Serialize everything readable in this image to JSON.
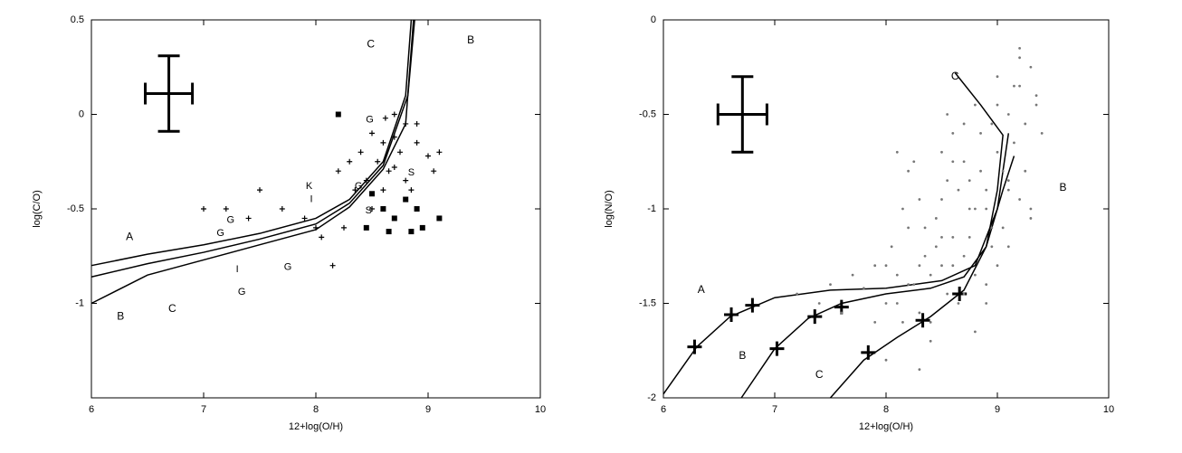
{
  "chart_data": [
    {
      "type": "line",
      "xlabel": "12+log(O/H)",
      "ylabel": "log(C/O)",
      "xlim": [
        6,
        10
      ],
      "ylim": [
        -1.5,
        0.5
      ],
      "xticks": [
        6,
        7,
        8,
        9,
        10
      ],
      "yticks": [
        -1,
        -0.5,
        0,
        0.5
      ],
      "error_bar": {
        "x": 6.69,
        "y": 0.11,
        "xerr": 0.21,
        "yerr": 0.2
      },
      "series": [
        {
          "type": "line",
          "color": "#000000",
          "x": [
            6,
            6.5,
            7,
            7.5,
            8,
            8.3,
            8.6,
            8.8,
            8.85
          ],
          "values": [
            -0.8,
            -0.74,
            -0.69,
            -0.63,
            -0.55,
            -0.45,
            -0.25,
            0.1,
            0.5
          ]
        },
        {
          "type": "line",
          "color": "#000000",
          "x": [
            6,
            6.5,
            7,
            7.5,
            8,
            8.3,
            8.6,
            8.82,
            8.88
          ],
          "values": [
            -0.86,
            -0.79,
            -0.73,
            -0.66,
            -0.58,
            -0.47,
            -0.27,
            0.1,
            0.5
          ]
        },
        {
          "type": "line",
          "color": "#000000",
          "x": [
            6,
            6.5,
            7,
            7.5,
            8,
            8.3,
            8.6,
            8.8,
            8.87
          ],
          "values": [
            -1.0,
            -0.85,
            -0.77,
            -0.69,
            -0.61,
            -0.49,
            -0.29,
            -0.05,
            0.5
          ]
        },
        {
          "type": "scatter",
          "marker": "plus",
          "color": "#000000",
          "x": [
            8.5,
            8.6,
            8.7,
            8.75,
            8.8,
            8.9,
            9.0,
            9.1,
            8.55,
            8.65,
            8.45,
            8.35,
            8.6,
            8.7,
            8.8,
            9.05,
            8.4,
            8.3,
            8.2,
            8.5,
            8.25,
            8.15,
            8.0,
            7.9,
            7.7,
            7.5,
            7.4,
            7.0,
            7.2,
            8.05,
            8.9,
            8.85,
            8.62,
            8.7
          ],
          "values": [
            -0.1,
            -0.15,
            -0.12,
            -0.2,
            -0.05,
            -0.15,
            -0.22,
            -0.2,
            -0.25,
            -0.3,
            -0.35,
            -0.4,
            -0.4,
            -0.28,
            -0.35,
            -0.3,
            -0.2,
            -0.25,
            -0.3,
            -0.5,
            -0.6,
            -0.8,
            -0.6,
            -0.55,
            -0.5,
            -0.4,
            -0.55,
            -0.5,
            -0.5,
            -0.65,
            -0.05,
            -0.4,
            -0.02,
            0.0
          ]
        },
        {
          "type": "scatter",
          "marker": "square",
          "color": "#000000",
          "x": [
            8.2,
            8.8,
            8.9,
            8.95,
            8.6,
            9.1,
            8.7,
            8.85,
            8.5,
            8.45,
            8.65
          ],
          "values": [
            0.0,
            -0.45,
            -0.5,
            -0.6,
            -0.5,
            -0.55,
            -0.55,
            -0.62,
            -0.42,
            -0.6,
            -0.62
          ]
        }
      ],
      "labeled_points": {
        "labels": [
          "G",
          "G",
          "G",
          "K",
          "I",
          "G",
          "G",
          "I",
          "S",
          "G",
          "S"
        ],
        "x": [
          8.48,
          7.24,
          7.15,
          7.94,
          7.96,
          7.34,
          7.75,
          7.3,
          8.85,
          8.38,
          8.47
        ],
        "values": [
          -0.03,
          -0.56,
          -0.63,
          -0.38,
          -0.45,
          -0.94,
          -0.81,
          -0.82,
          -0.31,
          -0.38,
          -0.51
        ]
      },
      "annotations": [
        {
          "text": "C",
          "x": 8.49,
          "y": 0.37
        },
        {
          "text": "B",
          "x": 9.38,
          "y": 0.39
        },
        {
          "text": "A",
          "x": 6.34,
          "y": -0.65
        },
        {
          "text": "B",
          "x": 6.26,
          "y": -1.07
        },
        {
          "text": "C",
          "x": 6.72,
          "y": -1.03
        }
      ]
    },
    {
      "type": "line",
      "xlabel": "12+log(O/H)",
      "ylabel": "log(N/O)",
      "xlim": [
        6,
        10
      ],
      "ylim": [
        -2,
        0
      ],
      "xticks": [
        6,
        7,
        8,
        9,
        10
      ],
      "yticks": [
        -2,
        -1.5,
        -1,
        -0.5,
        0
      ],
      "error_bar": {
        "x": 6.71,
        "y": -0.5,
        "xerr": 0.22,
        "yerr": 0.2
      },
      "series": [
        {
          "type": "line",
          "color": "#000000",
          "x": [
            6,
            6.3,
            6.6,
            7,
            7.5,
            8,
            8.5,
            8.8,
            9.0,
            9.1
          ],
          "values": [
            -1.98,
            -1.73,
            -1.57,
            -1.47,
            -1.43,
            -1.42,
            -1.38,
            -1.3,
            -1.0,
            -0.6
          ]
        },
        {
          "type": "line",
          "color": "#000000",
          "x": [
            6.7,
            7,
            7.3,
            7.6,
            8,
            8.4,
            8.7,
            8.9,
            9.05,
            9.15
          ],
          "values": [
            -2.0,
            -1.74,
            -1.58,
            -1.5,
            -1.45,
            -1.42,
            -1.36,
            -1.2,
            -0.9,
            -0.72
          ]
        },
        {
          "type": "line",
          "color": "#000000",
          "x": [
            7.5,
            7.8,
            8.1,
            8.4,
            8.7,
            8.9,
            9.0,
            9.05,
            8.85,
            8.62
          ],
          "values": [
            -2.0,
            -1.8,
            -1.68,
            -1.57,
            -1.43,
            -1.2,
            -0.9,
            -0.61,
            -0.45,
            -0.28
          ]
        },
        {
          "type": "scatter",
          "marker": "bigplus",
          "color": "#000000",
          "x": [
            6.28,
            6.61,
            6.8,
            7.02,
            7.36,
            7.6,
            7.84,
            8.33,
            8.66
          ],
          "values": [
            -1.73,
            -1.56,
            -1.51,
            -1.74,
            -1.57,
            -1.52,
            -1.76,
            -1.59,
            -1.45
          ]
        },
        {
          "type": "scatter",
          "marker": "dot",
          "color": "#777777",
          "x": [
            7.2,
            7.4,
            7.5,
            7.6,
            7.7,
            7.8,
            7.9,
            8.0,
            8.05,
            8.1,
            8.15,
            8.2,
            8.25,
            8.3,
            8.35,
            8.4,
            8.45,
            8.5,
            8.55,
            8.6,
            8.65,
            8.7,
            8.75,
            8.8,
            8.85,
            8.9,
            8.95,
            9.0,
            9.05,
            9.1,
            9.15,
            9.2,
            9.25,
            9.3,
            9.35,
            9.4,
            8.0,
            8.1,
            8.2,
            8.3,
            8.4,
            8.5,
            8.6,
            8.7,
            8.8,
            8.9,
            9.0,
            9.1,
            9.2,
            9.3,
            8.2,
            8.3,
            8.45,
            8.55,
            8.65,
            8.75,
            8.85,
            8.95,
            9.05,
            9.15,
            9.25,
            8.25,
            8.35,
            8.5,
            8.6,
            8.7,
            8.8,
            8.9,
            9.0,
            9.1,
            9.2,
            7.9,
            8.0,
            8.15,
            8.4,
            8.6,
            8.8,
            9.0,
            9.2,
            9.35,
            8.5,
            8.7,
            8.9,
            9.1,
            9.3,
            8.1,
            8.3,
            8.55,
            8.75,
            8.95
          ],
          "values": [
            -1.45,
            -1.5,
            -1.4,
            -1.55,
            -1.35,
            -1.42,
            -1.3,
            -1.5,
            -1.2,
            -1.35,
            -1.6,
            -1.1,
            -1.4,
            -0.95,
            -1.25,
            -1.7,
            -1.05,
            -1.3,
            -0.85,
            -1.15,
            -1.5,
            -0.75,
            -1.0,
            -1.35,
            -0.6,
            -0.9,
            -1.2,
            -0.45,
            -0.8,
            -0.5,
            -0.65,
            -0.35,
            -0.55,
            -0.25,
            -0.4,
            -0.6,
            -1.8,
            -0.7,
            -0.8,
            -1.85,
            -1.6,
            -0.95,
            -0.6,
            -1.25,
            -0.45,
            -1.0,
            -0.7,
            -0.9,
            -0.2,
            -1.05,
            -1.4,
            -1.55,
            -1.2,
            -1.45,
            -0.9,
            -1.15,
            -0.8,
            -0.55,
            -1.1,
            -0.35,
            -0.8,
            -0.75,
            -1.1,
            -0.7,
            -1.3,
            -1.45,
            -1.0,
            -1.4,
            -0.3,
            -1.2,
            -0.15,
            -1.6,
            -1.3,
            -1.0,
            -1.35,
            -0.75,
            -1.65,
            -1.3,
            -0.95,
            -0.45,
            -1.15,
            -0.55,
            -1.5,
            -0.85,
            -1.0,
            -1.5,
            -1.3,
            -0.5,
            -0.85,
            -1.1
          ]
        }
      ],
      "annotations": [
        {
          "text": "A",
          "x": 6.34,
          "y": -1.43
        },
        {
          "text": "B",
          "x": 6.71,
          "y": -1.78
        },
        {
          "text": "C",
          "x": 7.4,
          "y": -1.88
        },
        {
          "text": "C",
          "x": 8.62,
          "y": -0.3
        },
        {
          "text": "B",
          "x": 9.59,
          "y": -0.89
        }
      ]
    }
  ]
}
